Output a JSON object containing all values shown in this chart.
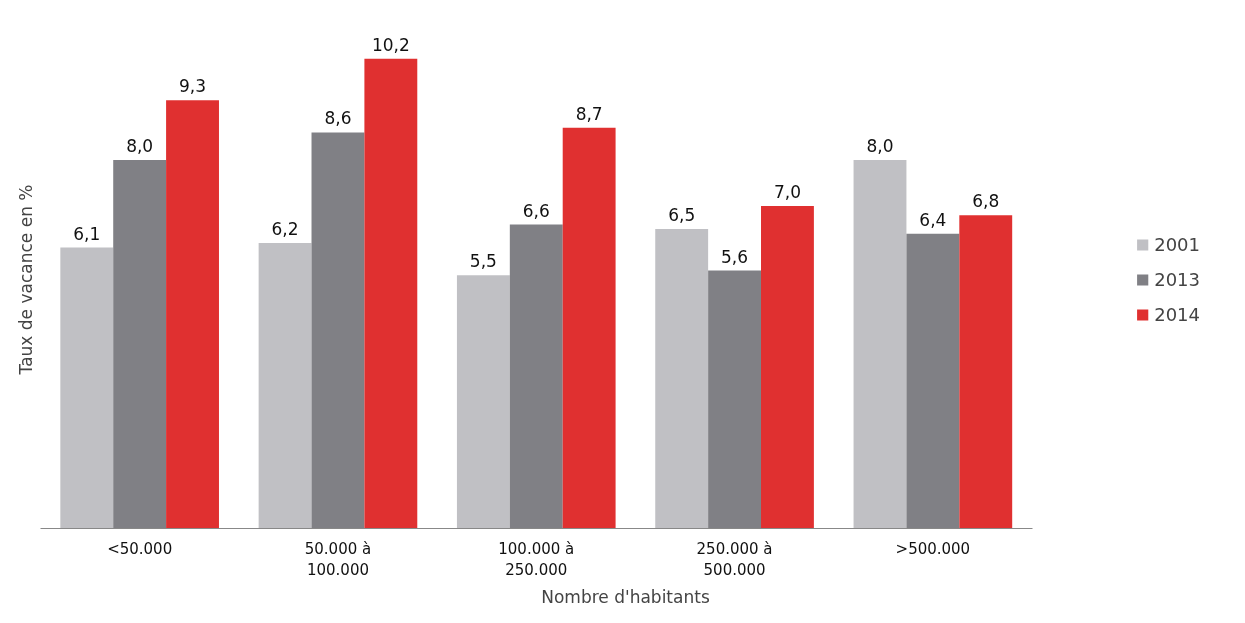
{
  "chart_data": {
    "type": "bar",
    "xlabel": "Nombre d'habitants",
    "ylabel": "Taux de vacance en %",
    "categories": [
      "<50.000",
      "50.000 à 100.000",
      "100.000 à 250.000",
      "250.000 à 500.000",
      ">500.000"
    ],
    "series": [
      {
        "name": "2001",
        "color": "#c0c0c4",
        "values": [
          6.1,
          6.2,
          5.5,
          6.5,
          8.0
        ],
        "value_labels": [
          "6,1",
          "6,2",
          "5,5",
          "6,5",
          "8,0"
        ]
      },
      {
        "name": "2013",
        "color": "#808085",
        "values": [
          8.0,
          8.6,
          6.6,
          5.6,
          6.4
        ],
        "value_labels": [
          "8,0",
          "8,6",
          "6,6",
          "5,6",
          "6,4"
        ]
      },
      {
        "name": "2014",
        "color": "#e03030",
        "values": [
          9.3,
          10.2,
          8.7,
          7.0,
          6.8
        ],
        "value_labels": [
          "9,3",
          "10,2",
          "8,7",
          "7,0",
          "6,8"
        ]
      }
    ],
    "legend": "right",
    "tick_labels": "x"
  }
}
